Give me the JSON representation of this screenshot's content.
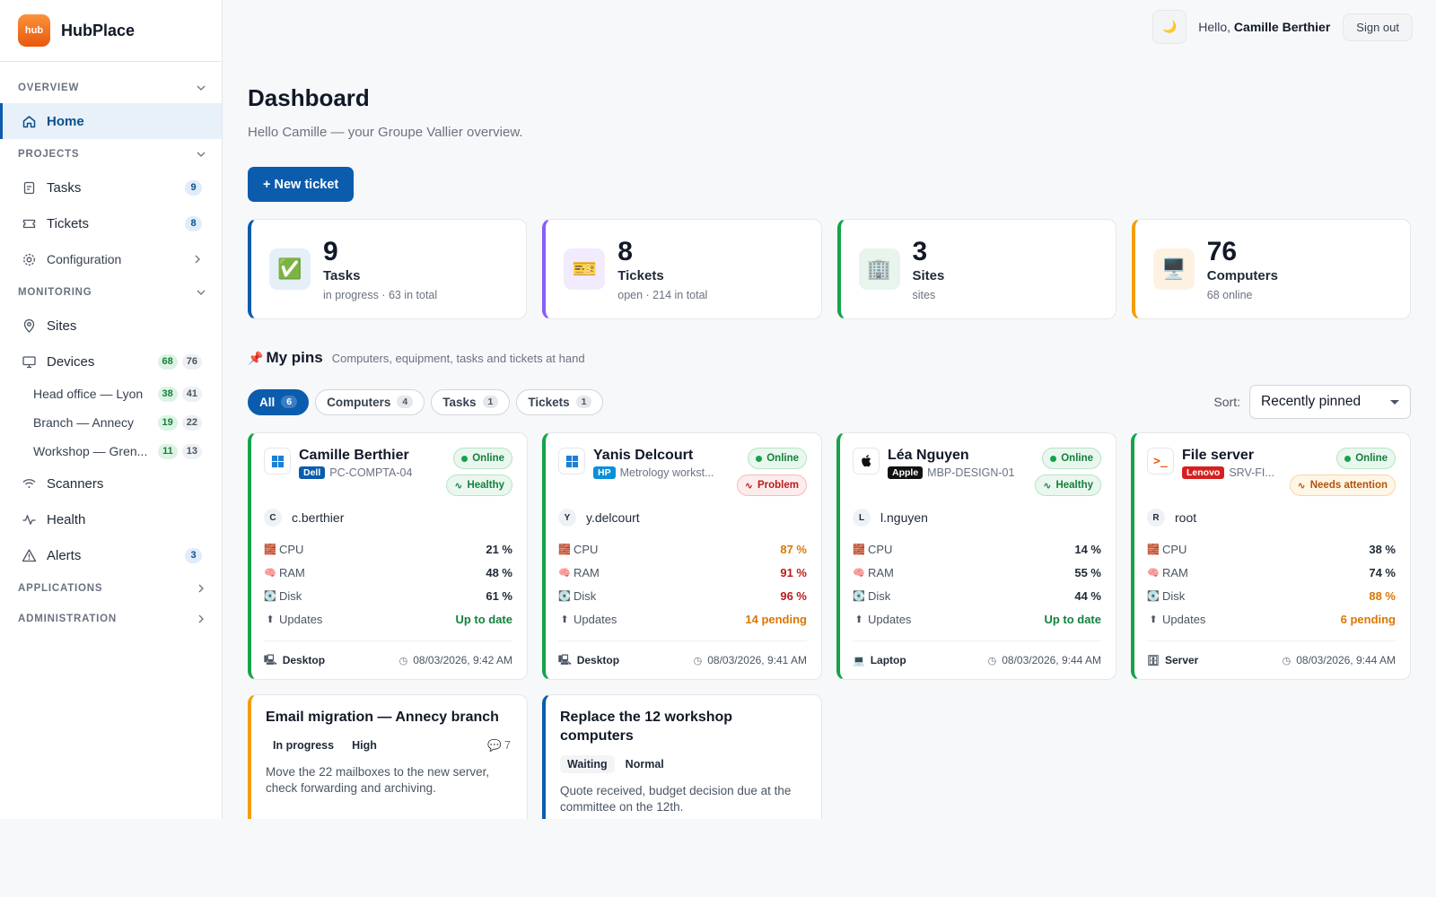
{
  "brand": {
    "logo_text": "hub",
    "name": "HubPlace"
  },
  "sidebar": {
    "overview": "OVERVIEW",
    "home": "Home",
    "projects": "PROJECTS",
    "tasks": {
      "label": "Tasks",
      "count": "9"
    },
    "tickets": {
      "label": "Tickets",
      "count": "8"
    },
    "configuration": "Configuration",
    "monitoring": "MONITORING",
    "sites": "Sites",
    "devices": {
      "label": "Devices",
      "online": "68",
      "total": "76"
    },
    "device_sites": [
      {
        "label": "Head office — Lyon",
        "online": "38",
        "total": "41"
      },
      {
        "label": "Branch — Annecy",
        "online": "19",
        "total": "22"
      },
      {
        "label": "Workshop — Gren...",
        "online": "11",
        "total": "13"
      }
    ],
    "scanners": "Scanners",
    "health": "Health",
    "alerts": {
      "label": "Alerts",
      "count": "3"
    },
    "applications": "APPLICATIONS",
    "administration": "ADMINISTRATION"
  },
  "topbar": {
    "theme_icon": "🌙",
    "hello": "Hello,",
    "user": "Camille Berthier",
    "sign_out": "Sign out"
  },
  "page": {
    "title": "Dashboard",
    "subtitle": "Hello Camille — your Groupe Vallier overview.",
    "new_ticket": "+ New ticket"
  },
  "stats": [
    {
      "icon": "✅",
      "num": "9",
      "label": "Tasks",
      "sub": "in progress · 63 in total",
      "accent": "#0b5cad",
      "bg": "#e6eef8"
    },
    {
      "icon": "🎫",
      "num": "8",
      "label": "Tickets",
      "sub": "open · 214 in total",
      "accent": "#8b5cf6",
      "bg": "#f1ebfd"
    },
    {
      "icon": "🏢",
      "num": "3",
      "label": "Sites",
      "sub": "sites",
      "accent": "#16a34a",
      "bg": "#e7f5ec"
    },
    {
      "icon": "🖥️",
      "num": "76",
      "label": "Computers",
      "sub": "68 online",
      "accent": "#f59e0b",
      "bg": "#fdf2e2"
    }
  ],
  "pins": {
    "pin_icon": "📌",
    "title": "My pins",
    "subtitle": "Computers, equipment, tasks and tickets at hand",
    "filters": [
      {
        "label": "All",
        "count": "6"
      },
      {
        "label": "Computers",
        "count": "4"
      },
      {
        "label": "Tasks",
        "count": "1"
      },
      {
        "label": "Tickets",
        "count": "1"
      }
    ],
    "sort_label": "Sort:",
    "sort_value": "Recently pinned"
  },
  "metric_labels": {
    "cpu": "CPU",
    "ram": "RAM",
    "disk": "Disk",
    "updates": "Updates"
  },
  "computers": [
    {
      "name": "Camille Berthier",
      "brand": "Dell",
      "brand_color": "#0b5cad",
      "host": "PC-COMPTA-04",
      "os": "windows",
      "status": "Online",
      "health": "Healthy",
      "user_initial": "C",
      "user": "c.berthier",
      "cpu": "21 %",
      "ram": "48 %",
      "disk": "61 %",
      "updates": "Up to date",
      "type": "Desktop",
      "time": "08/03/2026, 9:42 AM",
      "accent": "#16a34a"
    },
    {
      "name": "Yanis Delcourt",
      "brand": "HP",
      "brand_color": "#0b8fd6",
      "host": "Metrology workst...",
      "os": "windows",
      "status": "Online",
      "health": "Problem",
      "user_initial": "Y",
      "user": "y.delcourt",
      "cpu": "87 %",
      "ram": "91 %",
      "disk": "96 %",
      "updates": "14 pending",
      "type": "Desktop",
      "time": "08/03/2026, 9:41 AM",
      "accent": "#16a34a"
    },
    {
      "name": "Léa Nguyen",
      "brand": "Apple",
      "brand_color": "#111111",
      "host": "MBP-DESIGN-01",
      "os": "apple",
      "status": "Online",
      "health": "Healthy",
      "user_initial": "L",
      "user": "l.nguyen",
      "cpu": "14 %",
      "ram": "55 %",
      "disk": "44 %",
      "updates": "Up to date",
      "type": "Laptop",
      "time": "08/03/2026, 9:44 AM",
      "accent": "#16a34a"
    },
    {
      "name": "File server",
      "brand": "Lenovo",
      "brand_color": "#d61f1f",
      "host": "SRV-FI...",
      "os": "terminal",
      "status": "Online",
      "health": "Needs attention",
      "user_initial": "R",
      "user": "root",
      "cpu": "38 %",
      "ram": "74 %",
      "disk": "88 %",
      "updates": "6 pending",
      "type": "Server",
      "time": "08/03/2026, 9:44 AM",
      "accent": "#16a34a"
    }
  ],
  "tickets": [
    {
      "title": "Email migration — Annecy branch",
      "status": "In progress",
      "priority": "High",
      "comments": "7",
      "desc": "Move the 22 mailboxes to the new server, check forwarding and archiving.",
      "accent": "#f59e0b"
    },
    {
      "title": "Replace the 12 workshop computers",
      "status": "Waiting",
      "priority": "Normal",
      "comments": "",
      "desc": "Quote received, budget decision due at the committee on the 12th.",
      "accent": "#0b5cad"
    }
  ]
}
